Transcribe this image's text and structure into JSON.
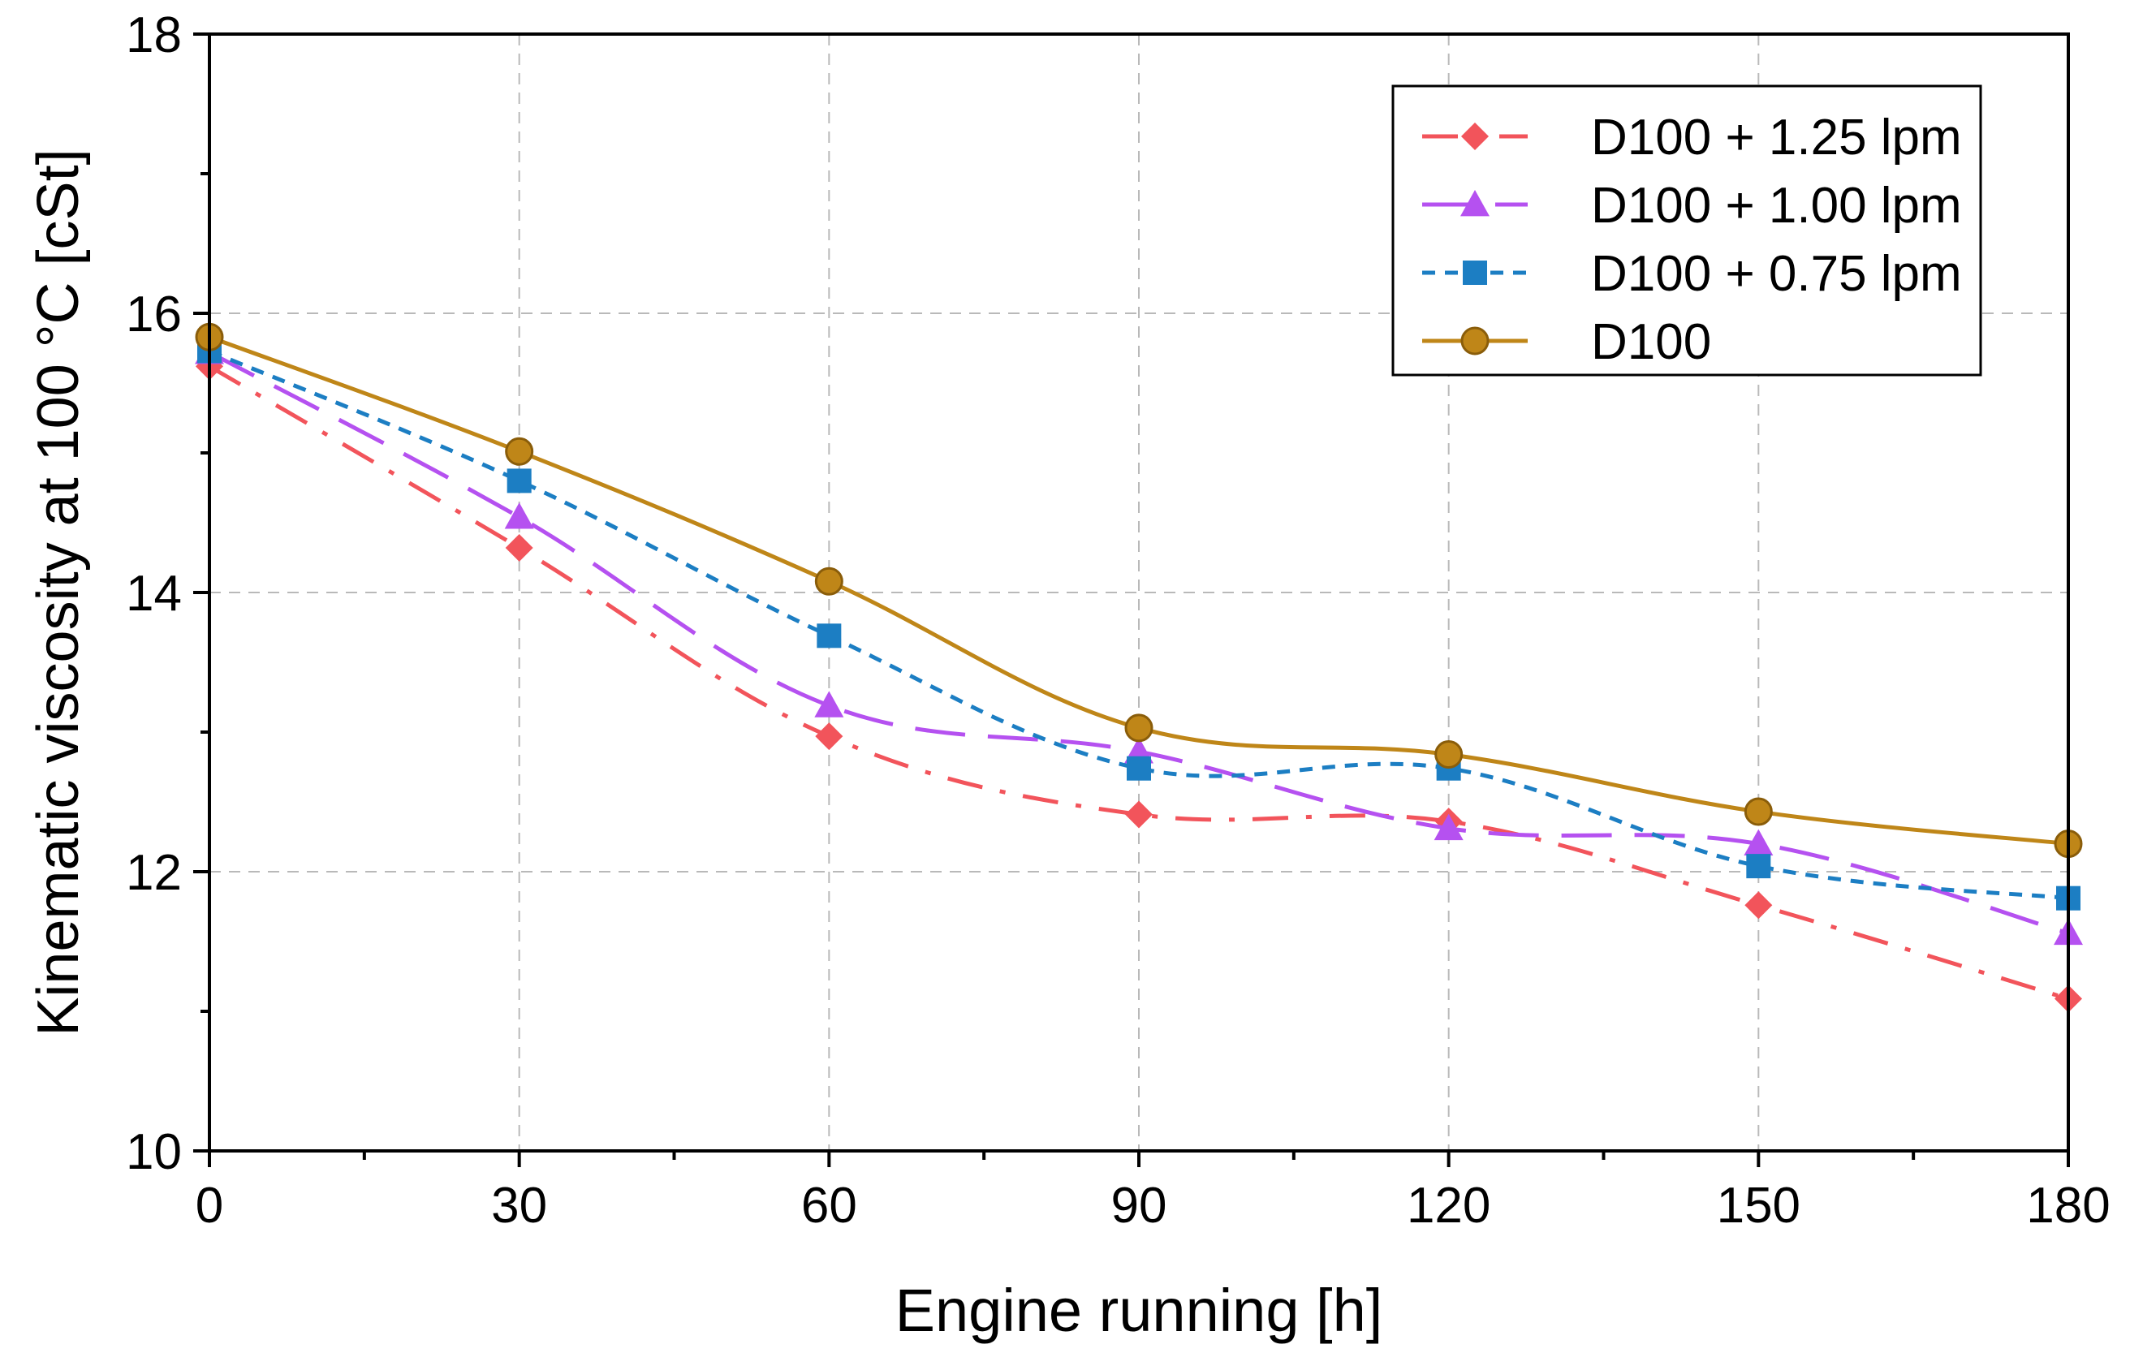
{
  "chart_data": {
    "type": "line",
    "title": "",
    "xlabel": "Engine running [h]",
    "ylabel": "Kinematic viscosity at 100 °C [cSt]",
    "x": [
      0,
      30,
      60,
      90,
      120,
      150,
      180
    ],
    "xlim": [
      0,
      180
    ],
    "ylim": [
      10,
      18
    ],
    "x_ticks": [
      0,
      30,
      60,
      90,
      120,
      150,
      180
    ],
    "x_tick_labels": [
      "0",
      "30",
      "60",
      "90",
      "120",
      "150",
      "180"
    ],
    "y_ticks": [
      10,
      12,
      14,
      16,
      18
    ],
    "y_tick_labels": [
      "10",
      "12",
      "14",
      "16",
      "18"
    ],
    "grid": true,
    "legend_position": "top-right",
    "series": [
      {
        "name": "D100 + 1.25 lpm",
        "values": [
          15.62,
          14.32,
          12.97,
          12.41,
          12.36,
          11.76,
          11.09
        ],
        "color": "#f2545b",
        "marker": "diamond",
        "line_style": "dash-dot"
      },
      {
        "name": "D100 + 1.00 lpm",
        "values": [
          15.72,
          14.54,
          13.19,
          12.86,
          12.31,
          12.2,
          11.56
        ],
        "color": "#b551f0",
        "marker": "triangle",
        "line_style": "long-dash"
      },
      {
        "name": "D100 + 0.75 lpm",
        "values": [
          15.73,
          14.8,
          13.69,
          12.74,
          12.74,
          12.04,
          11.81
        ],
        "color": "#1c7ec3",
        "marker": "square",
        "line_style": "short-dash"
      },
      {
        "name": "D100",
        "values": [
          15.83,
          15.01,
          14.08,
          13.03,
          12.84,
          12.43,
          12.2
        ],
        "color": "#bf8618",
        "marker": "circle",
        "line_style": "solid"
      }
    ]
  }
}
